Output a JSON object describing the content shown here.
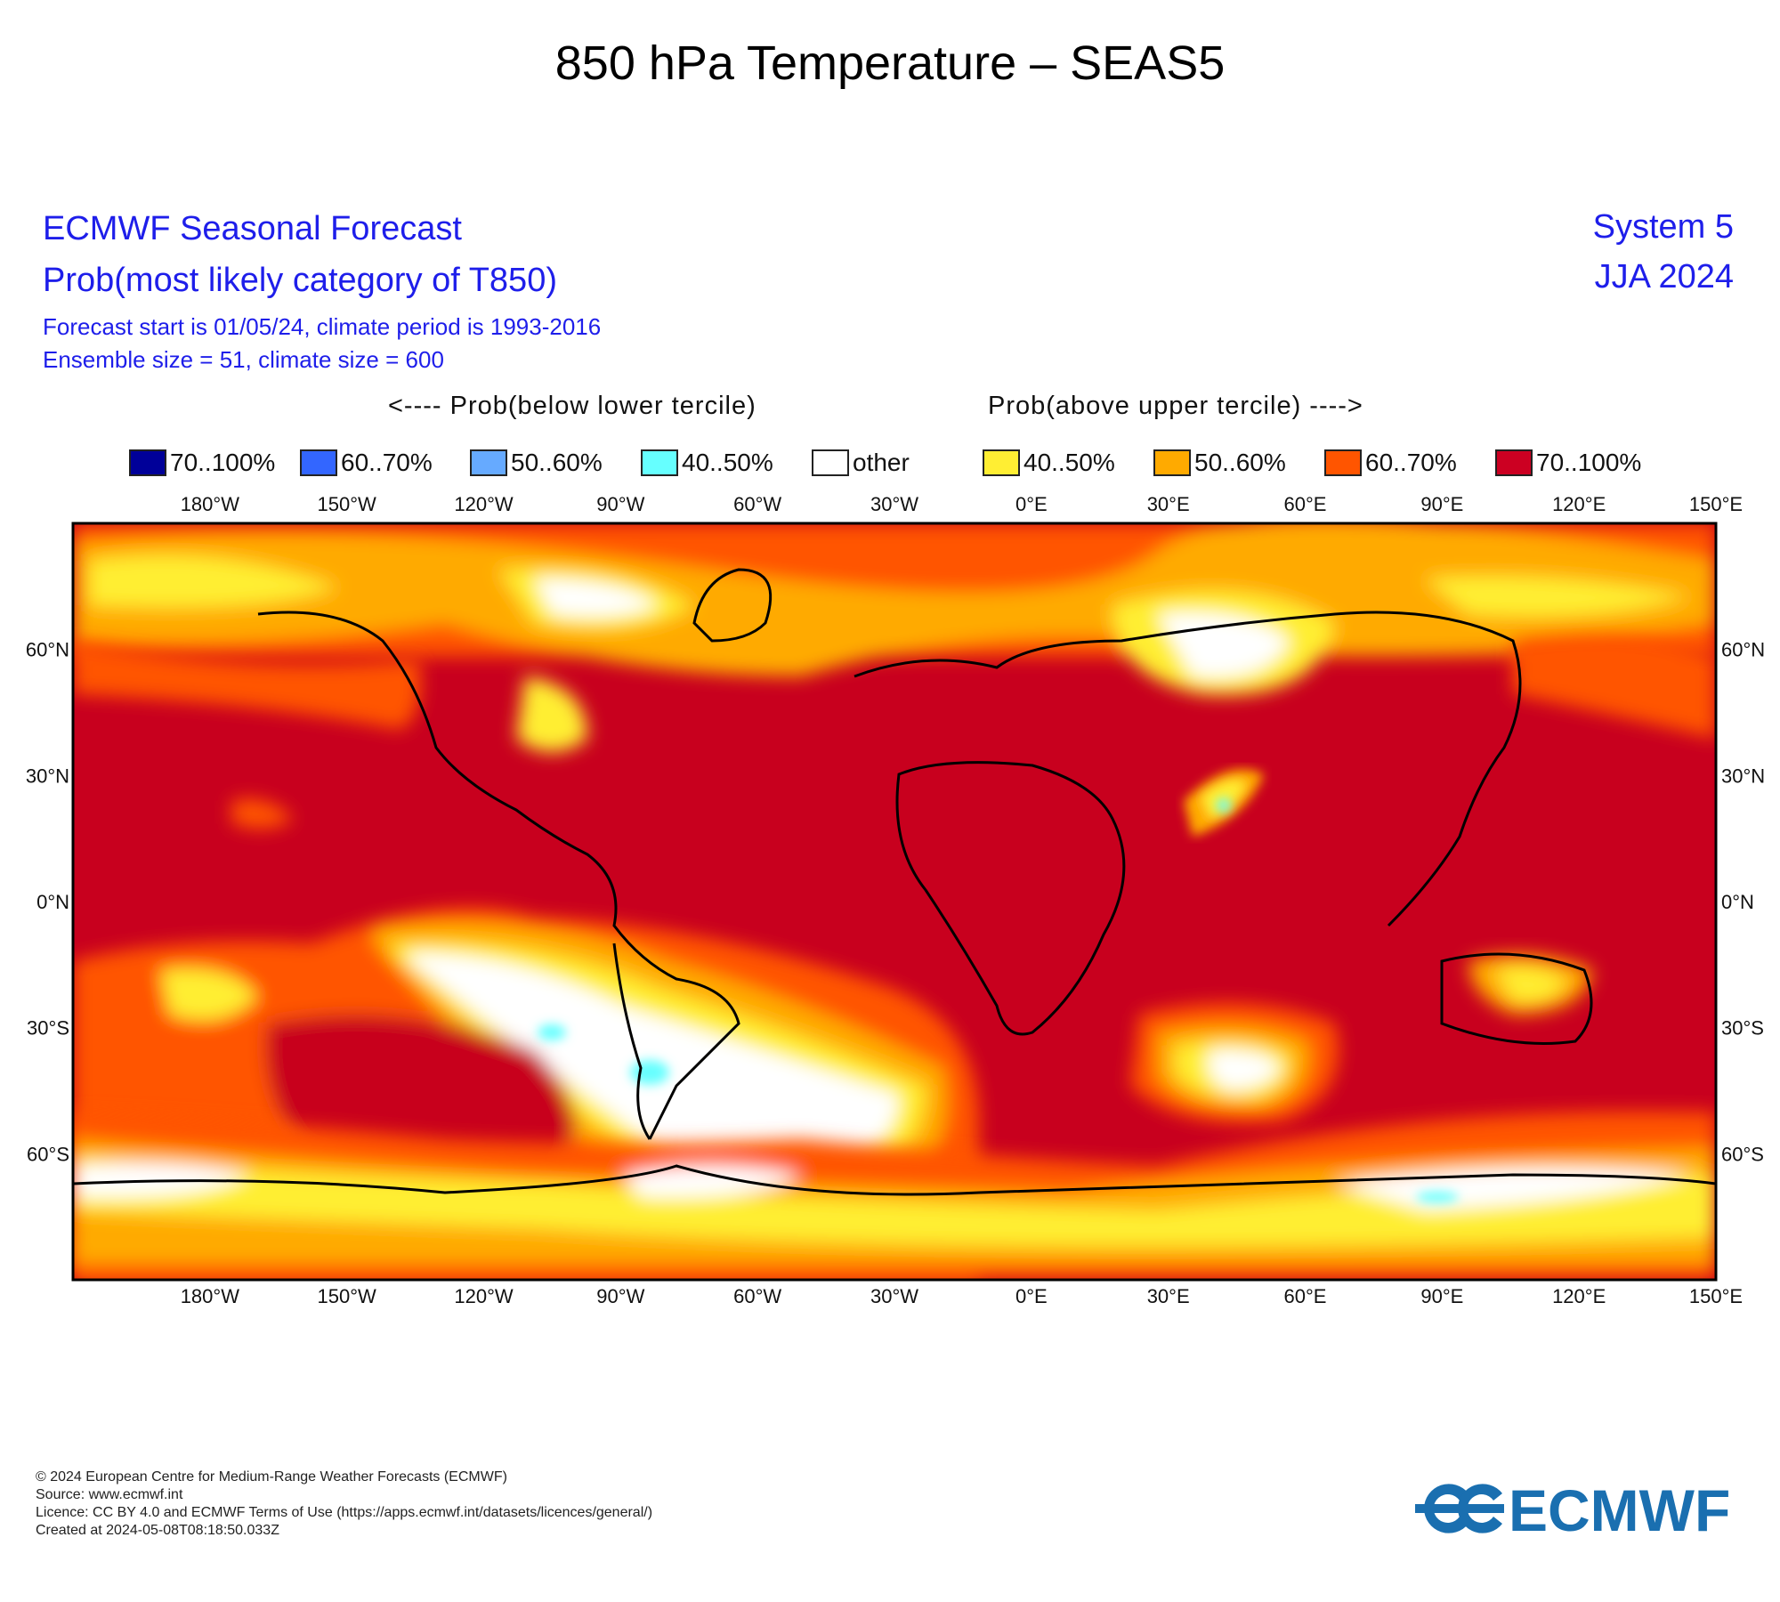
{
  "title": "850 hPa Temperature – SEAS5",
  "header": {
    "line1": "ECMWF Seasonal Forecast",
    "line2": "Prob(most likely category of T850)",
    "line3": "Forecast start is 01/05/24, climate period is 1993-2016",
    "line4": "Ensemble size = 51, climate size = 600",
    "system": "System 5",
    "season": "JJA 2024"
  },
  "tercile_labels": {
    "below": "<---- Prob(below lower tercile)",
    "above": "Prob(above upper tercile) ---->"
  },
  "legend": [
    {
      "label": "70..100%",
      "color": "#000099"
    },
    {
      "label": "60..70%",
      "color": "#3366ff"
    },
    {
      "label": "50..60%",
      "color": "#66aaff"
    },
    {
      "label": "40..50%",
      "color": "#66ffff"
    },
    {
      "label": "other",
      "color": "#ffffff"
    },
    {
      "label": "40..50%",
      "color": "#ffee33"
    },
    {
      "label": "50..60%",
      "color": "#ffaa00"
    },
    {
      "label": "60..70%",
      "color": "#ff5500"
    },
    {
      "label": "70..100%",
      "color": "#cc0022"
    }
  ],
  "map": {
    "lon_ticks": [
      "180°W",
      "150°W",
      "120°W",
      "90°W",
      "60°W",
      "30°W",
      "0°E",
      "30°E",
      "60°E",
      "90°E",
      "120°E",
      "150°E"
    ],
    "lat_ticks": [
      "60°N",
      "30°N",
      "0°N",
      "30°S",
      "60°S"
    ],
    "background_category": "70..100%"
  },
  "credits": [
    "© 2024 European Centre for Medium-Range Weather Forecasts (ECMWF)",
    "Source: www.ecmwf.int",
    "Licence: CC BY 4.0 and ECMWF Terms of Use (https://apps.ecmwf.int/datasets/licences/general/)",
    "Created at 2024-05-08T08:18:50.033Z"
  ],
  "logo_text": "ECMWF"
}
